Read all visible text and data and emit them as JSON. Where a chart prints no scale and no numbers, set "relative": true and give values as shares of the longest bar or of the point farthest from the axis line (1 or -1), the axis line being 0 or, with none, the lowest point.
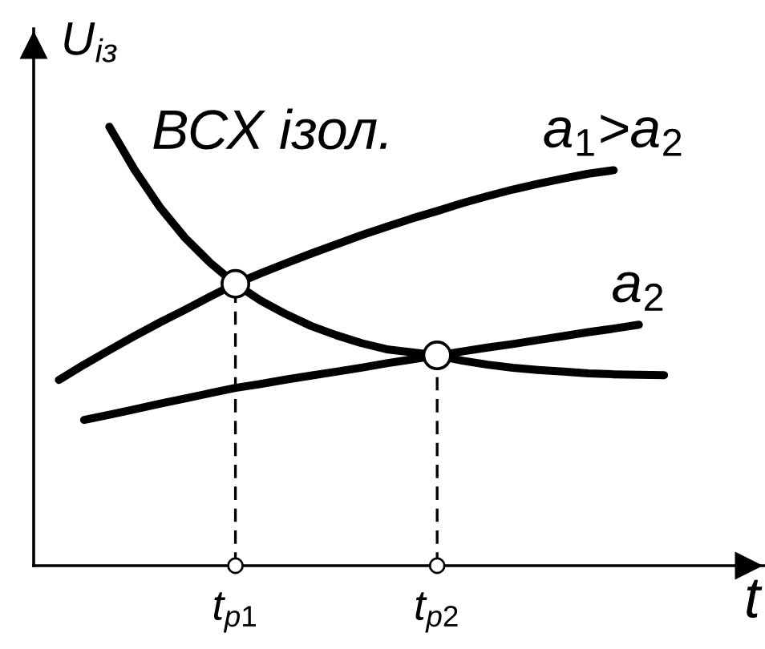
{
  "chart_data": {
    "type": "line",
    "relative": true,
    "xlabel": "t",
    "ylabel": "U$_{із}$",
    "grid": false,
    "legend": false,
    "marker": "none",
    "line_style": "solid",
    "categories": [
      null,
      null,
      null,
      null,
      null,
      null,
      null,
      "t$_{p1}$",
      null,
      null,
      null,
      null,
      null,
      null,
      null,
      "t$_{p2}$",
      null,
      null,
      null,
      null,
      null,
      null,
      null,
      null,
      null,
      null,
      null,
      null
    ],
    "series": [
      {
        "name": "ВСХ ізол.",
        "color": "#000000",
        "values": [
          null,
          null,
          1.0,
          0.902,
          0.817,
          0.747,
          0.69,
          0.642,
          0.604,
          0.573,
          0.546,
          0.525,
          0.507,
          0.493,
          0.486,
          0.479,
          0.467,
          0.458,
          0.451,
          0.446,
          0.442,
          0.438,
          0.436,
          0.435,
          0.434,
          null,
          null,
          null
        ]
      },
      {
        "name": "a$_{1}$>a$_{2}$",
        "color": "#000000",
        "values": [
          0.423,
          0.458,
          0.491,
          0.523,
          0.554,
          0.583,
          0.613,
          0.642,
          0.666,
          0.689,
          0.711,
          0.732,
          0.753,
          0.772,
          0.791,
          0.808,
          0.826,
          0.842,
          0.857,
          0.87,
          0.882,
          0.893,
          0.901,
          null,
          null,
          null,
          null,
          null
        ]
      },
      {
        "name": "a$_{2}$",
        "color": "#000000",
        "values": [
          null,
          0.332,
          0.344,
          0.356,
          0.369,
          0.381,
          0.393,
          0.405,
          0.414,
          0.424,
          0.433,
          0.442,
          0.451,
          0.461,
          0.47,
          0.479,
          0.488,
          0.497,
          0.505,
          0.514,
          0.523,
          0.532,
          0.54,
          0.549,
          null,
          null,
          null,
          null
        ]
      },
      {
        "type": "lollipop",
        "color": "#000000",
        "line_style": "dashed",
        "marker": "circle",
        "values": [
          null,
          null,
          null,
          null,
          null,
          null,
          null,
          0.642,
          null,
          null,
          null,
          null,
          null,
          null,
          null,
          0.479,
          null,
          null,
          null,
          null,
          null,
          null,
          null,
          null,
          null,
          null,
          null,
          null
        ]
      }
    ]
  }
}
